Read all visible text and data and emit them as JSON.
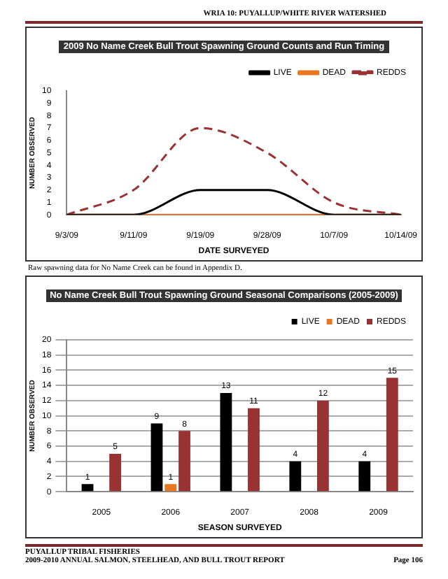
{
  "chart_data": [
    {
      "type": "line",
      "title": "2009 No Name Creek Bull Trout Spawning Ground Counts and Run Timing",
      "xlabel": "DATE SURVEYED",
      "ylabel": "NUMBER OBSERVED",
      "categories": [
        "9/3/09",
        "9/11/09",
        "9/19/09",
        "9/28/09",
        "10/7/09",
        "10/14/09"
      ],
      "series": [
        {
          "name": "LIVE",
          "color": "#000000",
          "line_style": "solid",
          "values": [
            0,
            0,
            2,
            2,
            0,
            0
          ]
        },
        {
          "name": "DEAD",
          "color": "#e87722",
          "line_style": "solid",
          "values": [
            0,
            0,
            0,
            0,
            0,
            0
          ]
        },
        {
          "name": "REDDS",
          "color": "#993333",
          "line_style": "dashed",
          "values": [
            0,
            2,
            7,
            5,
            1,
            0
          ]
        }
      ],
      "ylim": [
        0,
        10
      ],
      "yticks": [
        0,
        1,
        2,
        3,
        4,
        5,
        6,
        7,
        8,
        9,
        10
      ],
      "grid": false,
      "legend": "top right",
      "marker": "none",
      "annotations": [
        "WRIA 10: PUYALLUP/WHITE RIVER WATERSHED"
      ]
    },
    {
      "type": "bar",
      "title": "No Name Creek Bull Trout Spawning Ground Seasonal Comparisons (2005-2009)",
      "xlabel": "SEASON SURVEYED",
      "ylabel": "NUMBER OBSERVED",
      "categories": [
        "2005",
        "2006",
        "2007",
        "2008",
        "2009"
      ],
      "series": [
        {
          "name": "LIVE",
          "color": "#000000",
          "values": [
            1,
            9,
            13,
            4,
            4
          ]
        },
        {
          "name": "DEAD",
          "color": "#e87722",
          "values": [
            null,
            1,
            null,
            null,
            null
          ]
        },
        {
          "name": "REDDS",
          "color": "#993333",
          "values": [
            5,
            8,
            11,
            12,
            15
          ]
        }
      ],
      "ylim": [
        0,
        20
      ],
      "yticks": [
        0,
        2,
        4,
        6,
        8,
        10,
        12,
        14,
        16,
        18,
        20
      ],
      "grid": "y",
      "legend": "top right",
      "data_labels": true,
      "annotations": [
        "Raw spawning data for No Name Creek can be found in Appendix D.",
        "PUYALLUP TRIBAL FISHERIES",
        "2009-2010 ANNUAL SALMON, STEELHEAD, AND BULL TROUT REPORT",
        "Page 106"
      ]
    }
  ]
}
